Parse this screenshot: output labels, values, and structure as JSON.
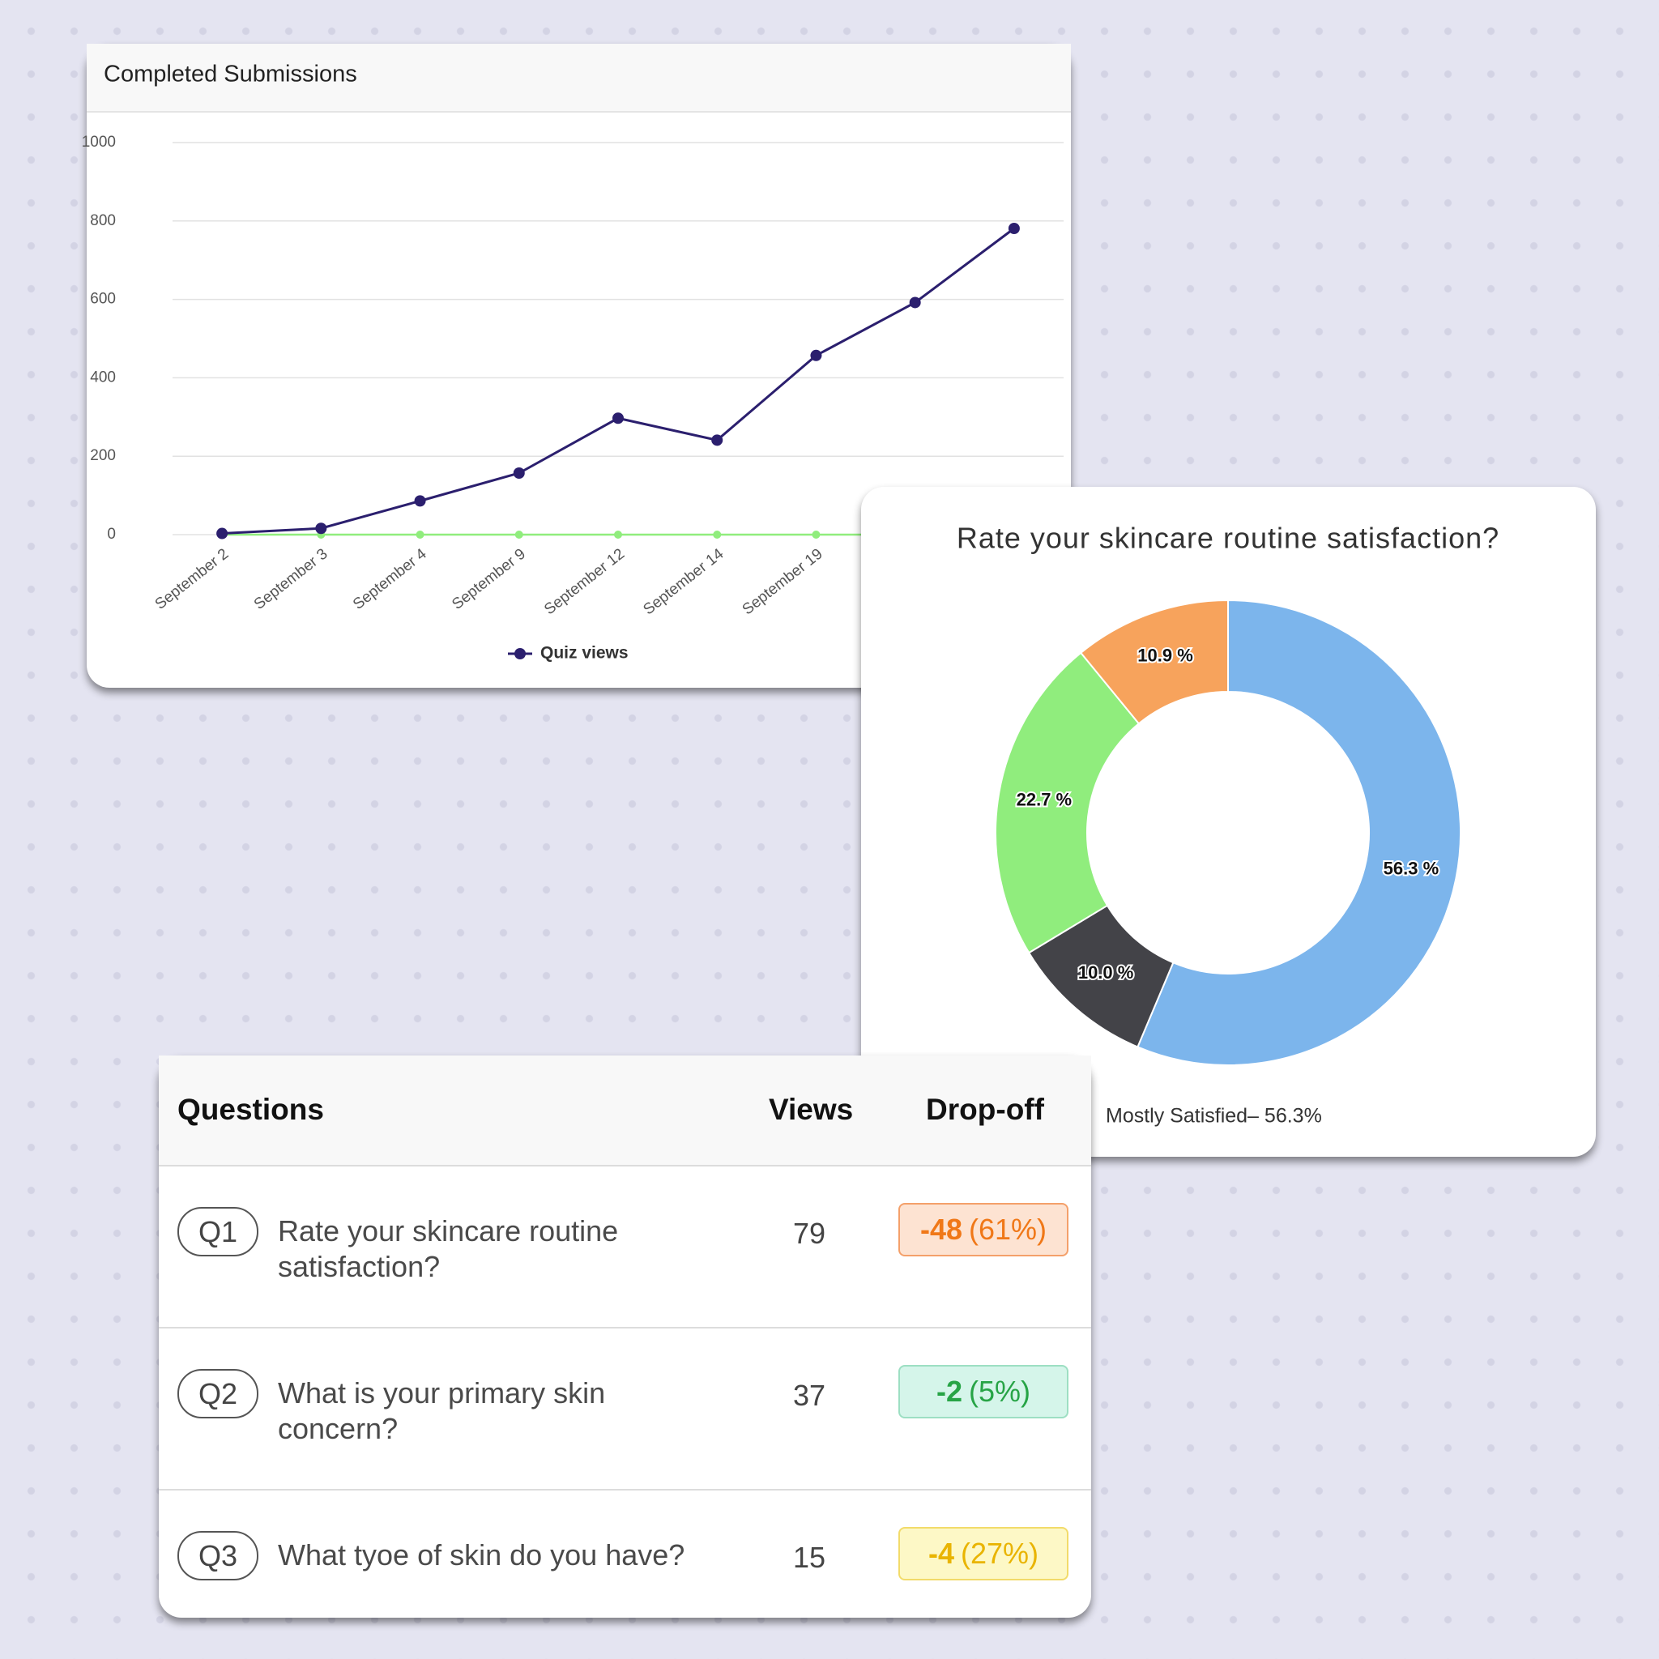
{
  "chart_data": [
    {
      "type": "line",
      "title": "Completed Submissions",
      "categories": [
        "September 2",
        "September 3",
        "September 4",
        "September 9",
        "September 12",
        "September 14",
        "September 19",
        null,
        null
      ],
      "series": [
        {
          "name": "Quiz views",
          "color": "#2b1f6e",
          "values": [
            3,
            16,
            86,
            157,
            297,
            241,
            457,
            592,
            781
          ]
        },
        {
          "color": "#90ed7d",
          "values": [
            0,
            0,
            0,
            0,
            0,
            0,
            0,
            0,
            0
          ]
        }
      ],
      "ylim": [
        0,
        1000
      ],
      "yticks": [
        0,
        200,
        400,
        600,
        800,
        1000
      ],
      "grid": true,
      "legend": "bottom"
    },
    {
      "type": "pie",
      "title": "Rate your skincare routine satisfaction?",
      "values": [
        56.3,
        10.0,
        22.7,
        10.9
      ],
      "value_labels": [
        "56.3 %",
        "10.0 %",
        "22.7 %",
        "10.9 %"
      ],
      "colors": [
        "#7cb5ec",
        "#434348",
        "#90ed7d",
        "#f7a35c"
      ],
      "legend_label": "Mostly Satisfied– 56.3%"
    }
  ],
  "table": {
    "headers": [
      "Questions",
      "Views",
      "Drop-off"
    ],
    "rows": [
      {
        "id": "Q1",
        "question": "Rate your skincare routine satisfaction?",
        "views": "79",
        "drop": "-48",
        "pct": "(61%)",
        "status": "orange"
      },
      {
        "id": "Q2",
        "question": "What is your primary skin concern?",
        "views": "37",
        "drop": "-2",
        "pct": "(5%)",
        "status": "green"
      },
      {
        "id": "Q3",
        "question": "What tyoe of skin do you have?",
        "views": "15",
        "drop": "-4",
        "pct": "(27%)",
        "status": "yellow"
      }
    ]
  }
}
